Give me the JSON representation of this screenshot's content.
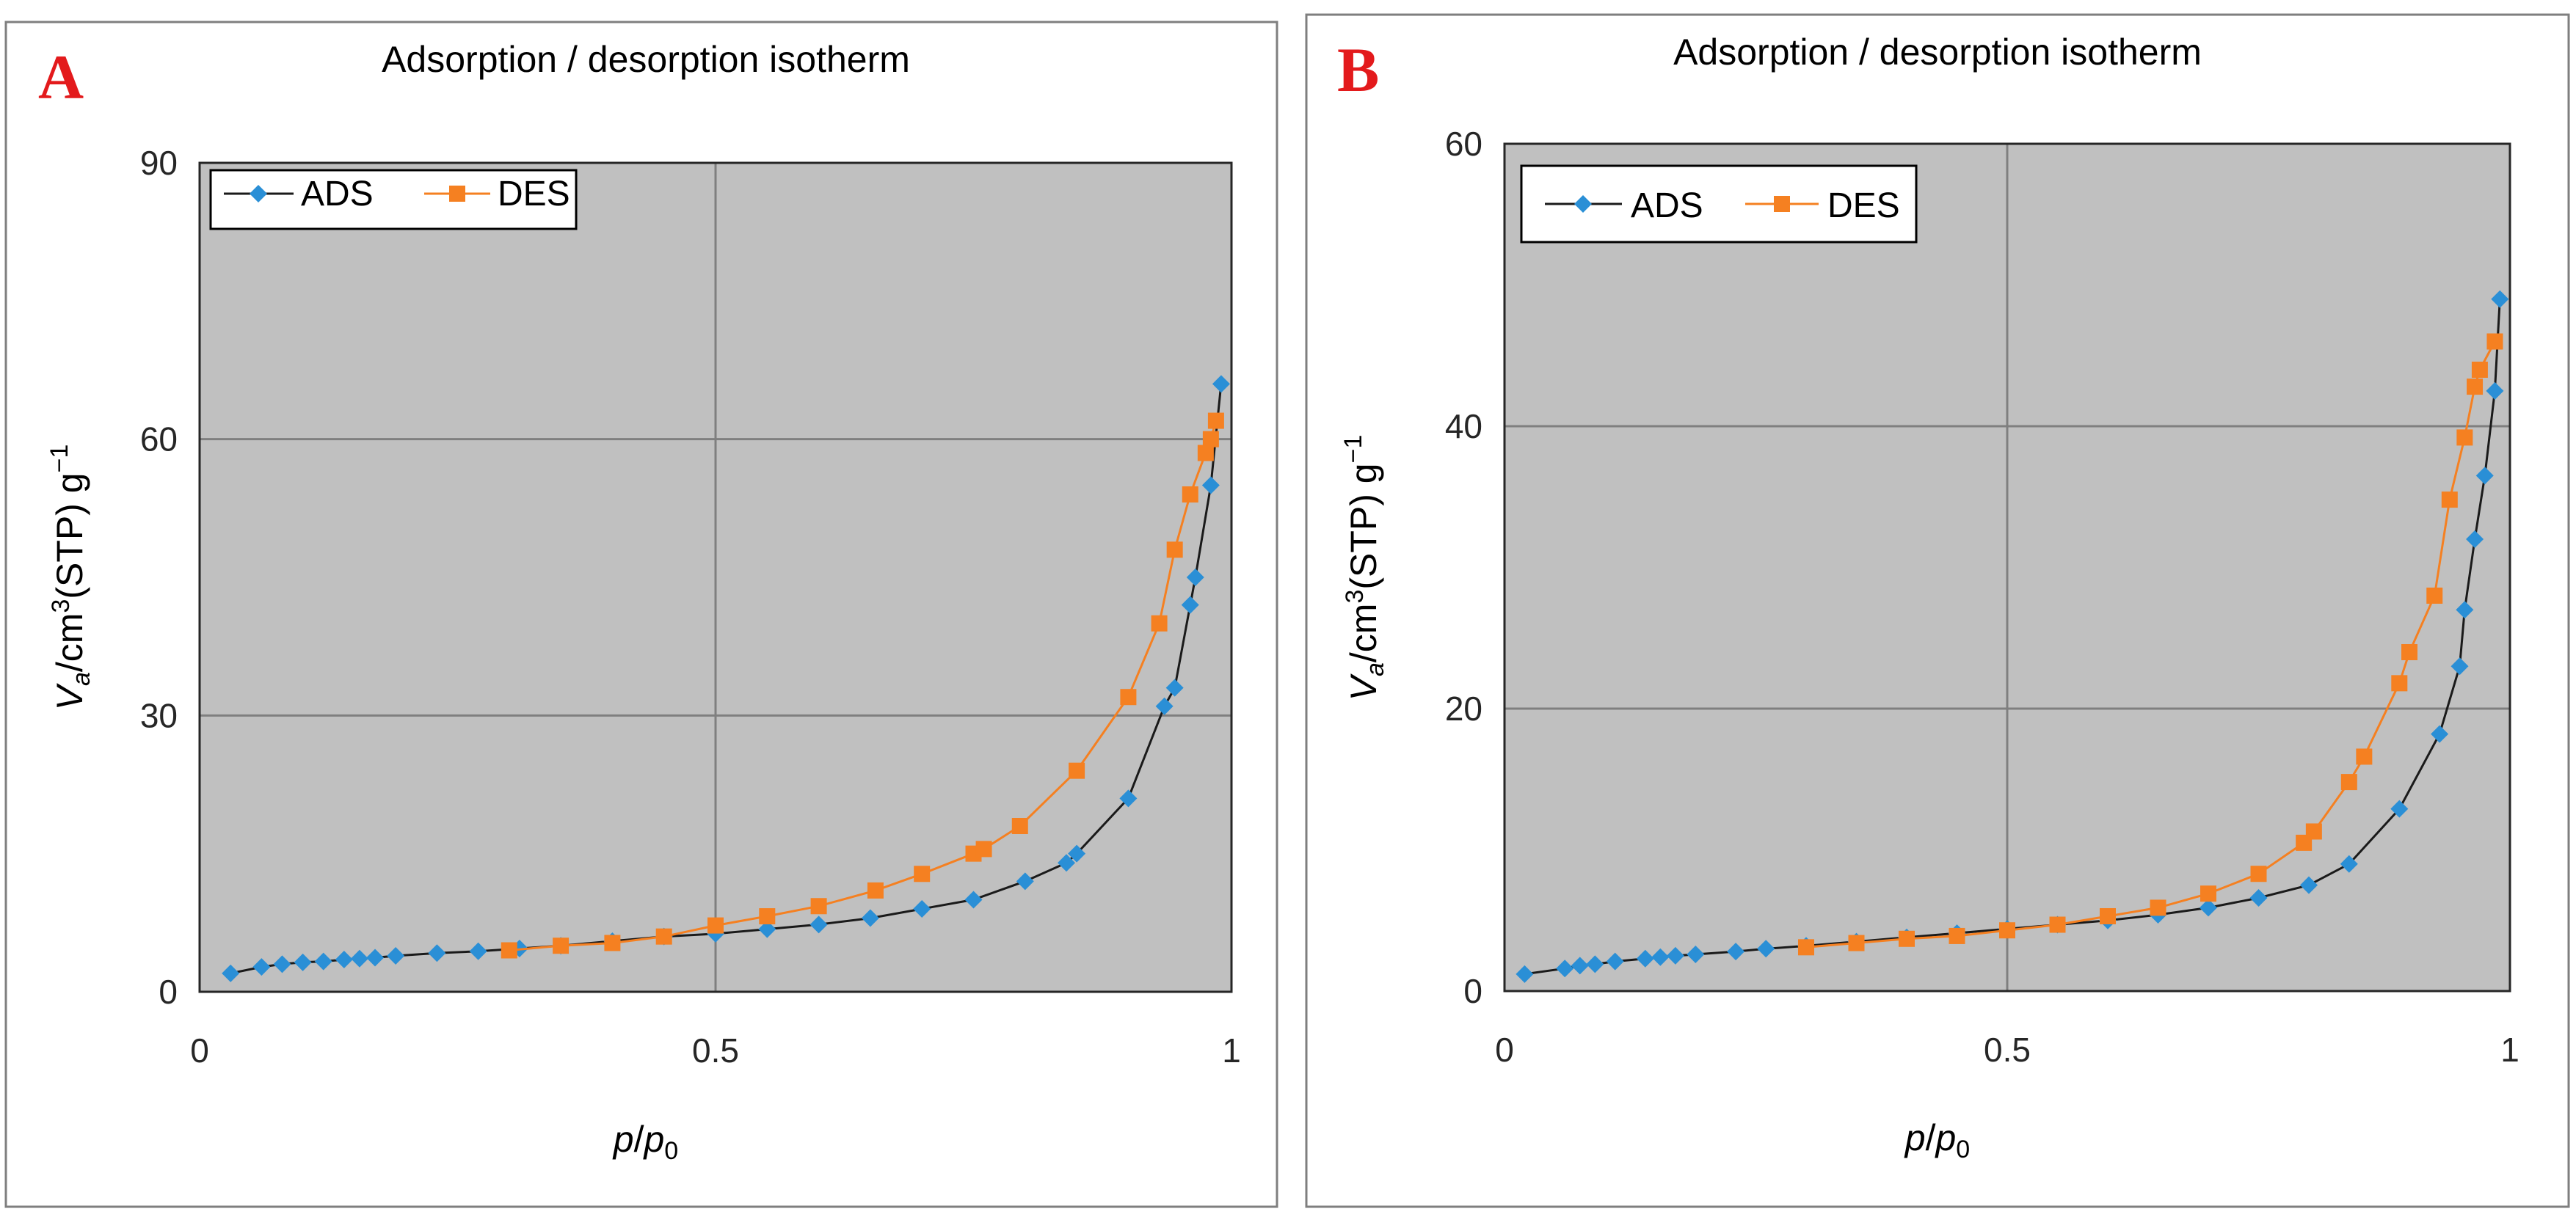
{
  "colors": {
    "ads": "#2a8fd6",
    "des": "#f58021",
    "ads_line": "#1a1a1a",
    "letter": "#e31a1c",
    "plot_bg": "#c0c0c0"
  },
  "chart_data": [
    {
      "type": "line",
      "panel": "A",
      "title": "Adsorption / desorption isotherm",
      "xlabel": "p/p0",
      "ylabel": "Va/cm3(STP)g−1",
      "xlim": [
        0,
        1
      ],
      "ylim": [
        0,
        90
      ],
      "xticks": [
        0,
        0.5,
        1
      ],
      "xtick_labels": [
        "0",
        "0.5",
        "1"
      ],
      "yticks": [
        0,
        30,
        60,
        90
      ],
      "ytick_labels": [
        "0",
        "30",
        "60",
        "90"
      ],
      "grid": true,
      "legend": "top-left",
      "series": [
        {
          "name": "ADS",
          "marker": "diamond",
          "x": [
            0.03,
            0.06,
            0.08,
            0.1,
            0.12,
            0.14,
            0.155,
            0.17,
            0.19,
            0.23,
            0.27,
            0.31,
            0.35,
            0.4,
            0.45,
            0.5,
            0.55,
            0.6,
            0.65,
            0.7,
            0.75,
            0.8,
            0.84,
            0.85,
            0.9,
            0.935,
            0.945,
            0.96,
            0.965,
            0.98,
            0.99
          ],
          "y": [
            2.0,
            2.7,
            3.0,
            3.2,
            3.3,
            3.5,
            3.6,
            3.7,
            3.9,
            4.2,
            4.4,
            4.7,
            5.0,
            5.5,
            6.0,
            6.3,
            6.8,
            7.3,
            8.0,
            9.0,
            10.0,
            12.0,
            14.0,
            15.0,
            21.0,
            31.0,
            33.0,
            42.0,
            45.0,
            55.0,
            66.0
          ]
        },
        {
          "name": "DES",
          "marker": "square",
          "x": [
            0.3,
            0.35,
            0.4,
            0.45,
            0.5,
            0.55,
            0.6,
            0.655,
            0.7,
            0.75,
            0.76,
            0.795,
            0.85,
            0.9,
            0.93,
            0.945,
            0.96,
            0.975,
            0.98,
            0.985
          ],
          "y": [
            4.5,
            5.0,
            5.3,
            6.0,
            7.2,
            8.2,
            9.3,
            11.0,
            12.8,
            15.0,
            15.5,
            18.0,
            24.0,
            32.0,
            40.0,
            48.0,
            54.0,
            58.5,
            60.0,
            62.0
          ]
        }
      ]
    },
    {
      "type": "line",
      "panel": "B",
      "title": "Adsorption / desorption isotherm",
      "xlabel": "p/p0",
      "ylabel": "Va/cm3(STP)g−1",
      "xlim": [
        0,
        1
      ],
      "ylim": [
        0,
        60
      ],
      "xticks": [
        0,
        0.5,
        1
      ],
      "xtick_labels": [
        "0",
        "0.5",
        "1"
      ],
      "yticks": [
        0,
        20,
        40,
        60
      ],
      "ytick_labels": [
        "0",
        "20",
        "40",
        "60"
      ],
      "grid": true,
      "legend": "top-left",
      "series": [
        {
          "name": "ADS",
          "marker": "diamond",
          "x": [
            0.02,
            0.06,
            0.075,
            0.09,
            0.11,
            0.14,
            0.155,
            0.17,
            0.19,
            0.23,
            0.26,
            0.3,
            0.35,
            0.4,
            0.45,
            0.5,
            0.55,
            0.6,
            0.65,
            0.7,
            0.75,
            0.8,
            0.84,
            0.89,
            0.93,
            0.95,
            0.955,
            0.965,
            0.975,
            0.985,
            0.99
          ],
          "y": [
            1.2,
            1.6,
            1.8,
            1.9,
            2.1,
            2.3,
            2.4,
            2.5,
            2.6,
            2.8,
            3.0,
            3.2,
            3.5,
            3.8,
            4.1,
            4.4,
            4.7,
            5.0,
            5.4,
            5.9,
            6.6,
            7.5,
            9.0,
            12.9,
            18.2,
            23.0,
            27.0,
            32.0,
            36.5,
            42.5,
            49.0
          ]
        },
        {
          "name": "DES",
          "marker": "square",
          "x": [
            0.3,
            0.35,
            0.4,
            0.45,
            0.5,
            0.55,
            0.6,
            0.65,
            0.7,
            0.75,
            0.795,
            0.805,
            0.84,
            0.855,
            0.89,
            0.9,
            0.925,
            0.94,
            0.955,
            0.965,
            0.97,
            0.985
          ],
          "y": [
            3.1,
            3.4,
            3.7,
            3.9,
            4.3,
            4.7,
            5.3,
            5.9,
            6.9,
            8.3,
            10.5,
            11.3,
            14.8,
            16.6,
            21.8,
            24.0,
            28.0,
            34.8,
            39.2,
            42.8,
            44.0,
            46.0
          ]
        }
      ]
    }
  ]
}
